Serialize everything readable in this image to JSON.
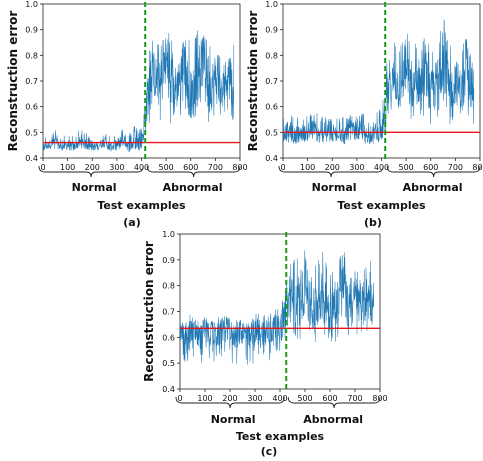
{
  "chart_data": [
    {
      "type": "line",
      "panel_label": "(a)",
      "ylabel": "Reconstruction error",
      "xlabel": "Test examples",
      "xlim": [
        0,
        800
      ],
      "ylim": [
        0.4,
        1.0
      ],
      "x_ticks": [
        0,
        100,
        200,
        300,
        400,
        500,
        600,
        700,
        800
      ],
      "y_ticks": [
        0.4,
        0.5,
        0.6,
        0.7,
        0.8,
        0.9,
        1.0
      ],
      "group_labels": [
        "Normal",
        "Abnormal"
      ],
      "threshold": 0.46,
      "split_x": 415,
      "series": [
        {
          "x": [
            0,
            25,
            50,
            75,
            100,
            125,
            150,
            175,
            200,
            225,
            250,
            275,
            300,
            325,
            350,
            375,
            400,
            425,
            450,
            475,
            500,
            525,
            550,
            575,
            600,
            625,
            650,
            675,
            700,
            725,
            750,
            775
          ],
          "y": [
            0.44,
            0.45,
            0.46,
            0.44,
            0.45,
            0.44,
            0.46,
            0.45,
            0.44,
            0.45,
            0.46,
            0.44,
            0.45,
            0.47,
            0.44,
            0.46,
            0.45,
            0.64,
            0.72,
            0.66,
            0.78,
            0.62,
            0.7,
            0.75,
            0.63,
            0.68,
            0.8,
            0.65,
            0.71,
            0.62,
            0.74,
            0.67
          ],
          "upper": [
            0.49,
            0.49,
            0.51,
            0.48,
            0.5,
            0.49,
            0.51,
            0.5,
            0.48,
            0.49,
            0.5,
            0.49,
            0.51,
            0.52,
            0.5,
            0.53,
            0.52,
            0.82,
            0.88,
            0.85,
            0.93,
            0.86,
            0.84,
            0.89,
            0.86,
            0.9,
            0.91,
            0.87,
            0.88,
            0.82,
            0.86,
            0.85
          ],
          "lower": [
            0.43,
            0.43,
            0.43,
            0.43,
            0.43,
            0.43,
            0.43,
            0.43,
            0.43,
            0.43,
            0.43,
            0.43,
            0.43,
            0.43,
            0.43,
            0.43,
            0.43,
            0.5,
            0.56,
            0.52,
            0.58,
            0.5,
            0.55,
            0.57,
            0.52,
            0.54,
            0.6,
            0.52,
            0.55,
            0.5,
            0.57,
            0.53
          ]
        }
      ]
    },
    {
      "type": "line",
      "panel_label": "(b)",
      "ylabel": "Reconstruction error",
      "xlabel": "Test examples",
      "xlim": [
        0,
        800
      ],
      "ylim": [
        0.4,
        1.0
      ],
      "x_ticks": [
        0,
        100,
        200,
        300,
        400,
        500,
        600,
        700,
        800
      ],
      "y_ticks": [
        0.4,
        0.5,
        0.6,
        0.7,
        0.8,
        0.9,
        1.0
      ],
      "group_labels": [
        "Normal",
        "Abnormal"
      ],
      "threshold": 0.5,
      "split_x": 415,
      "series": [
        {
          "x": [
            0,
            25,
            50,
            75,
            100,
            125,
            150,
            175,
            200,
            225,
            250,
            275,
            300,
            325,
            350,
            375,
            400,
            425,
            450,
            475,
            500,
            525,
            550,
            575,
            600,
            625,
            650,
            675,
            700,
            725,
            750,
            775
          ],
          "y": [
            0.49,
            0.51,
            0.48,
            0.5,
            0.49,
            0.51,
            0.48,
            0.5,
            0.49,
            0.5,
            0.48,
            0.51,
            0.49,
            0.5,
            0.48,
            0.5,
            0.49,
            0.62,
            0.7,
            0.66,
            0.74,
            0.63,
            0.69,
            0.72,
            0.64,
            0.68,
            0.78,
            0.65,
            0.7,
            0.64,
            0.72,
            0.66
          ],
          "upper": [
            0.56,
            0.59,
            0.55,
            0.58,
            0.56,
            0.61,
            0.56,
            0.57,
            0.55,
            0.57,
            0.56,
            0.58,
            0.56,
            0.58,
            0.55,
            0.58,
            0.6,
            0.82,
            0.86,
            0.84,
            0.9,
            0.86,
            0.88,
            0.87,
            0.85,
            0.9,
            0.98,
            0.86,
            0.88,
            0.84,
            0.88,
            0.85
          ],
          "lower": [
            0.46,
            0.46,
            0.45,
            0.46,
            0.46,
            0.46,
            0.45,
            0.46,
            0.46,
            0.46,
            0.45,
            0.46,
            0.46,
            0.46,
            0.45,
            0.46,
            0.46,
            0.52,
            0.55,
            0.53,
            0.57,
            0.52,
            0.55,
            0.56,
            0.53,
            0.54,
            0.58,
            0.53,
            0.55,
            0.52,
            0.56,
            0.53
          ]
        }
      ]
    },
    {
      "type": "line",
      "panel_label": "(c)",
      "ylabel": "Reconstruction error",
      "xlabel": "Test examples",
      "xlim": [
        0,
        800
      ],
      "ylim": [
        0.4,
        1.0
      ],
      "x_ticks": [
        0,
        100,
        200,
        300,
        400,
        500,
        600,
        700,
        800
      ],
      "y_ticks": [
        0.4,
        0.5,
        0.6,
        0.7,
        0.8,
        0.9,
        1.0
      ],
      "group_labels": [
        "Normal",
        "Abnormal"
      ],
      "threshold": 0.635,
      "split_x": 425,
      "series": [
        {
          "x": [
            0,
            25,
            50,
            75,
            100,
            125,
            150,
            175,
            200,
            225,
            250,
            275,
            300,
            325,
            350,
            375,
            400,
            425,
            450,
            475,
            500,
            525,
            550,
            575,
            600,
            625,
            650,
            675,
            700,
            725,
            750,
            775
          ],
          "y": [
            0.62,
            0.6,
            0.63,
            0.59,
            0.62,
            0.61,
            0.6,
            0.63,
            0.61,
            0.6,
            0.62,
            0.59,
            0.61,
            0.62,
            0.6,
            0.63,
            0.62,
            0.7,
            0.74,
            0.72,
            0.78,
            0.68,
            0.73,
            0.76,
            0.7,
            0.72,
            0.8,
            0.69,
            0.74,
            0.7,
            0.75,
            0.71
          ],
          "upper": [
            0.68,
            0.67,
            0.7,
            0.66,
            0.69,
            0.68,
            0.67,
            0.71,
            0.68,
            0.67,
            0.7,
            0.66,
            0.69,
            0.7,
            0.68,
            0.72,
            0.71,
            0.86,
            0.93,
            0.9,
            0.99,
            0.88,
            0.92,
            0.94,
            0.88,
            0.9,
            0.96,
            0.87,
            0.9,
            0.88,
            0.92,
            0.89
          ],
          "lower": [
            0.52,
            0.5,
            0.53,
            0.48,
            0.52,
            0.5,
            0.49,
            0.53,
            0.5,
            0.49,
            0.52,
            0.48,
            0.5,
            0.52,
            0.49,
            0.53,
            0.51,
            0.56,
            0.6,
            0.58,
            0.62,
            0.55,
            0.59,
            0.61,
            0.56,
            0.58,
            0.63,
            0.55,
            0.6,
            0.56,
            0.61,
            0.57
          ]
        }
      ]
    }
  ]
}
